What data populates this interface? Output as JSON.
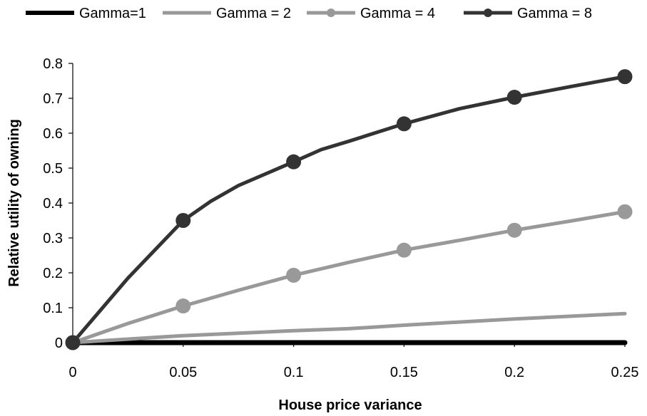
{
  "chart_data": {
    "type": "line",
    "title": "",
    "xlabel": "House price variance",
    "ylabel": "Relative utility of owning",
    "xlim": [
      0,
      0.25
    ],
    "ylim": [
      0,
      0.8
    ],
    "x_ticks": [
      "0",
      "0.05",
      "0.1",
      "0.15",
      "0.2",
      "0.25"
    ],
    "y_ticks": [
      "0",
      "0.1",
      "0.2",
      "0.3",
      "0.4",
      "0.5",
      "0.6",
      "0.7",
      "0.8"
    ],
    "grid": false,
    "legend_position": "top",
    "series": [
      {
        "name": "Gamma=1",
        "color": "#000000",
        "line_width": 7,
        "markers": false,
        "x": [
          0,
          0.05,
          0.1,
          0.15,
          0.2,
          0.25
        ],
        "y": [
          0,
          0,
          0,
          0,
          0,
          0
        ]
      },
      {
        "name": "Gamma = 2",
        "color": "#999999",
        "line_width": 5,
        "markers": false,
        "x": [
          0,
          0.05,
          0.1,
          0.125,
          0.15,
          0.2,
          0.25
        ],
        "y": [
          0,
          0.02,
          0.034,
          0.04,
          0.05,
          0.068,
          0.083
        ]
      },
      {
        "name": "Gamma = 4",
        "color": "#999999",
        "line_width": 5,
        "markers": true,
        "marker_x": [
          0,
          0.05,
          0.1,
          0.15,
          0.2,
          0.25
        ],
        "x": [
          0,
          0.025,
          0.05,
          0.075,
          0.1,
          0.125,
          0.15,
          0.175,
          0.2,
          0.225,
          0.25
        ],
        "y": [
          0,
          0.055,
          0.105,
          0.15,
          0.193,
          0.23,
          0.265,
          0.293,
          0.322,
          0.348,
          0.375
        ]
      },
      {
        "name": "Gamma = 8",
        "color": "#333333",
        "line_width": 5,
        "markers": true,
        "marker_x": [
          0,
          0.05,
          0.1,
          0.15,
          0.2,
          0.25
        ],
        "x": [
          0,
          0.025,
          0.05,
          0.0625,
          0.075,
          0.1,
          0.1125,
          0.125,
          0.15,
          0.175,
          0.2,
          0.225,
          0.25
        ],
        "y": [
          0,
          0.185,
          0.35,
          0.405,
          0.45,
          0.518,
          0.553,
          0.577,
          0.627,
          0.67,
          0.703,
          0.733,
          0.762
        ]
      }
    ]
  }
}
